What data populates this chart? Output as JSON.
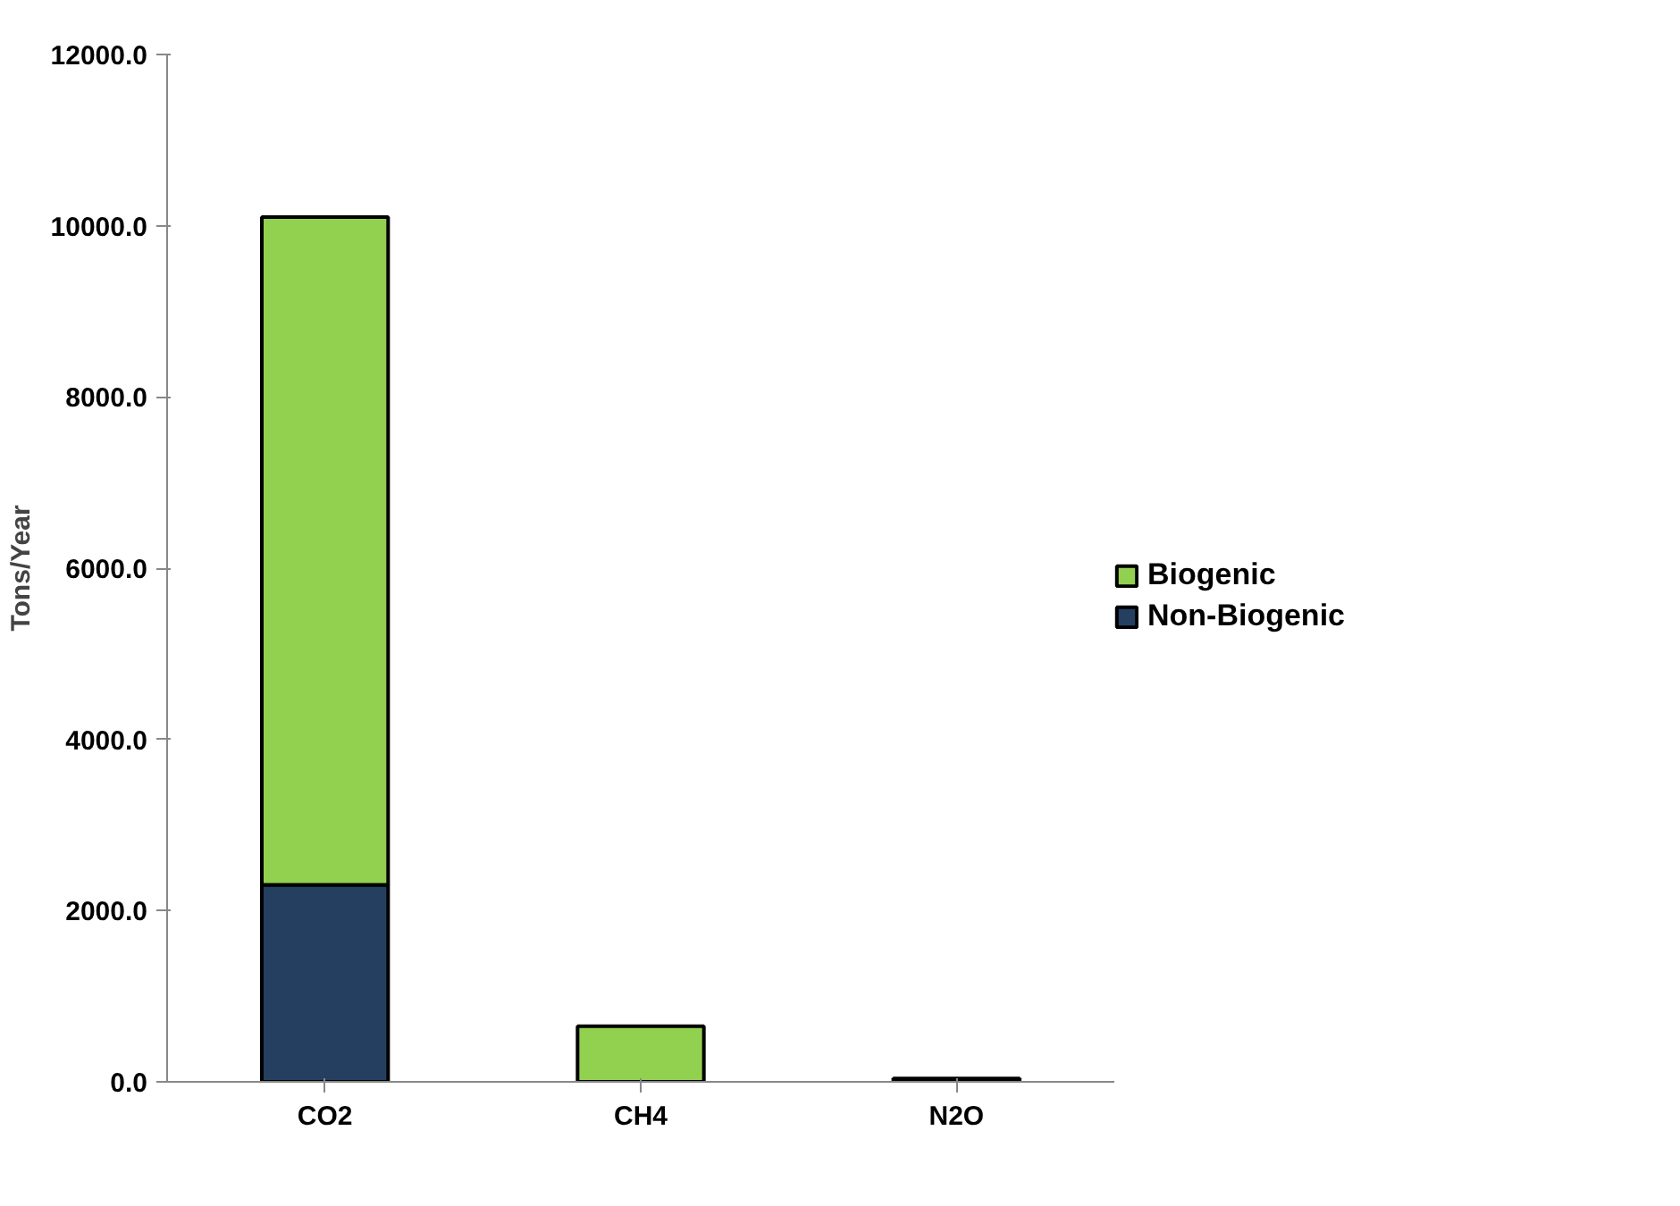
{
  "chart_data": {
    "type": "bar",
    "stacked": true,
    "ylabel": "Tons/Year",
    "categories": [
      "CO2",
      "CH4",
      "N2O"
    ],
    "series": [
      {
        "name": "Non-Biogenic",
        "color": "#243f60",
        "values": [
          2300,
          0,
          40
        ]
      },
      {
        "name": "Biogenic",
        "color": "#92d050",
        "values": [
          7800,
          650,
          0
        ]
      }
    ],
    "ylim": [
      0,
      12000
    ],
    "yticks": [
      {
        "value": 0,
        "label": "0.0"
      },
      {
        "value": 2000,
        "label": "2000.0"
      },
      {
        "value": 4000,
        "label": "4000.0"
      },
      {
        "value": 6000,
        "label": "6000.0"
      },
      {
        "value": 8000,
        "label": "8000.0"
      },
      {
        "value": 10000,
        "label": "10000.0"
      },
      {
        "value": 12000,
        "label": "12000.0"
      }
    ],
    "grid": false,
    "legend": "right"
  }
}
